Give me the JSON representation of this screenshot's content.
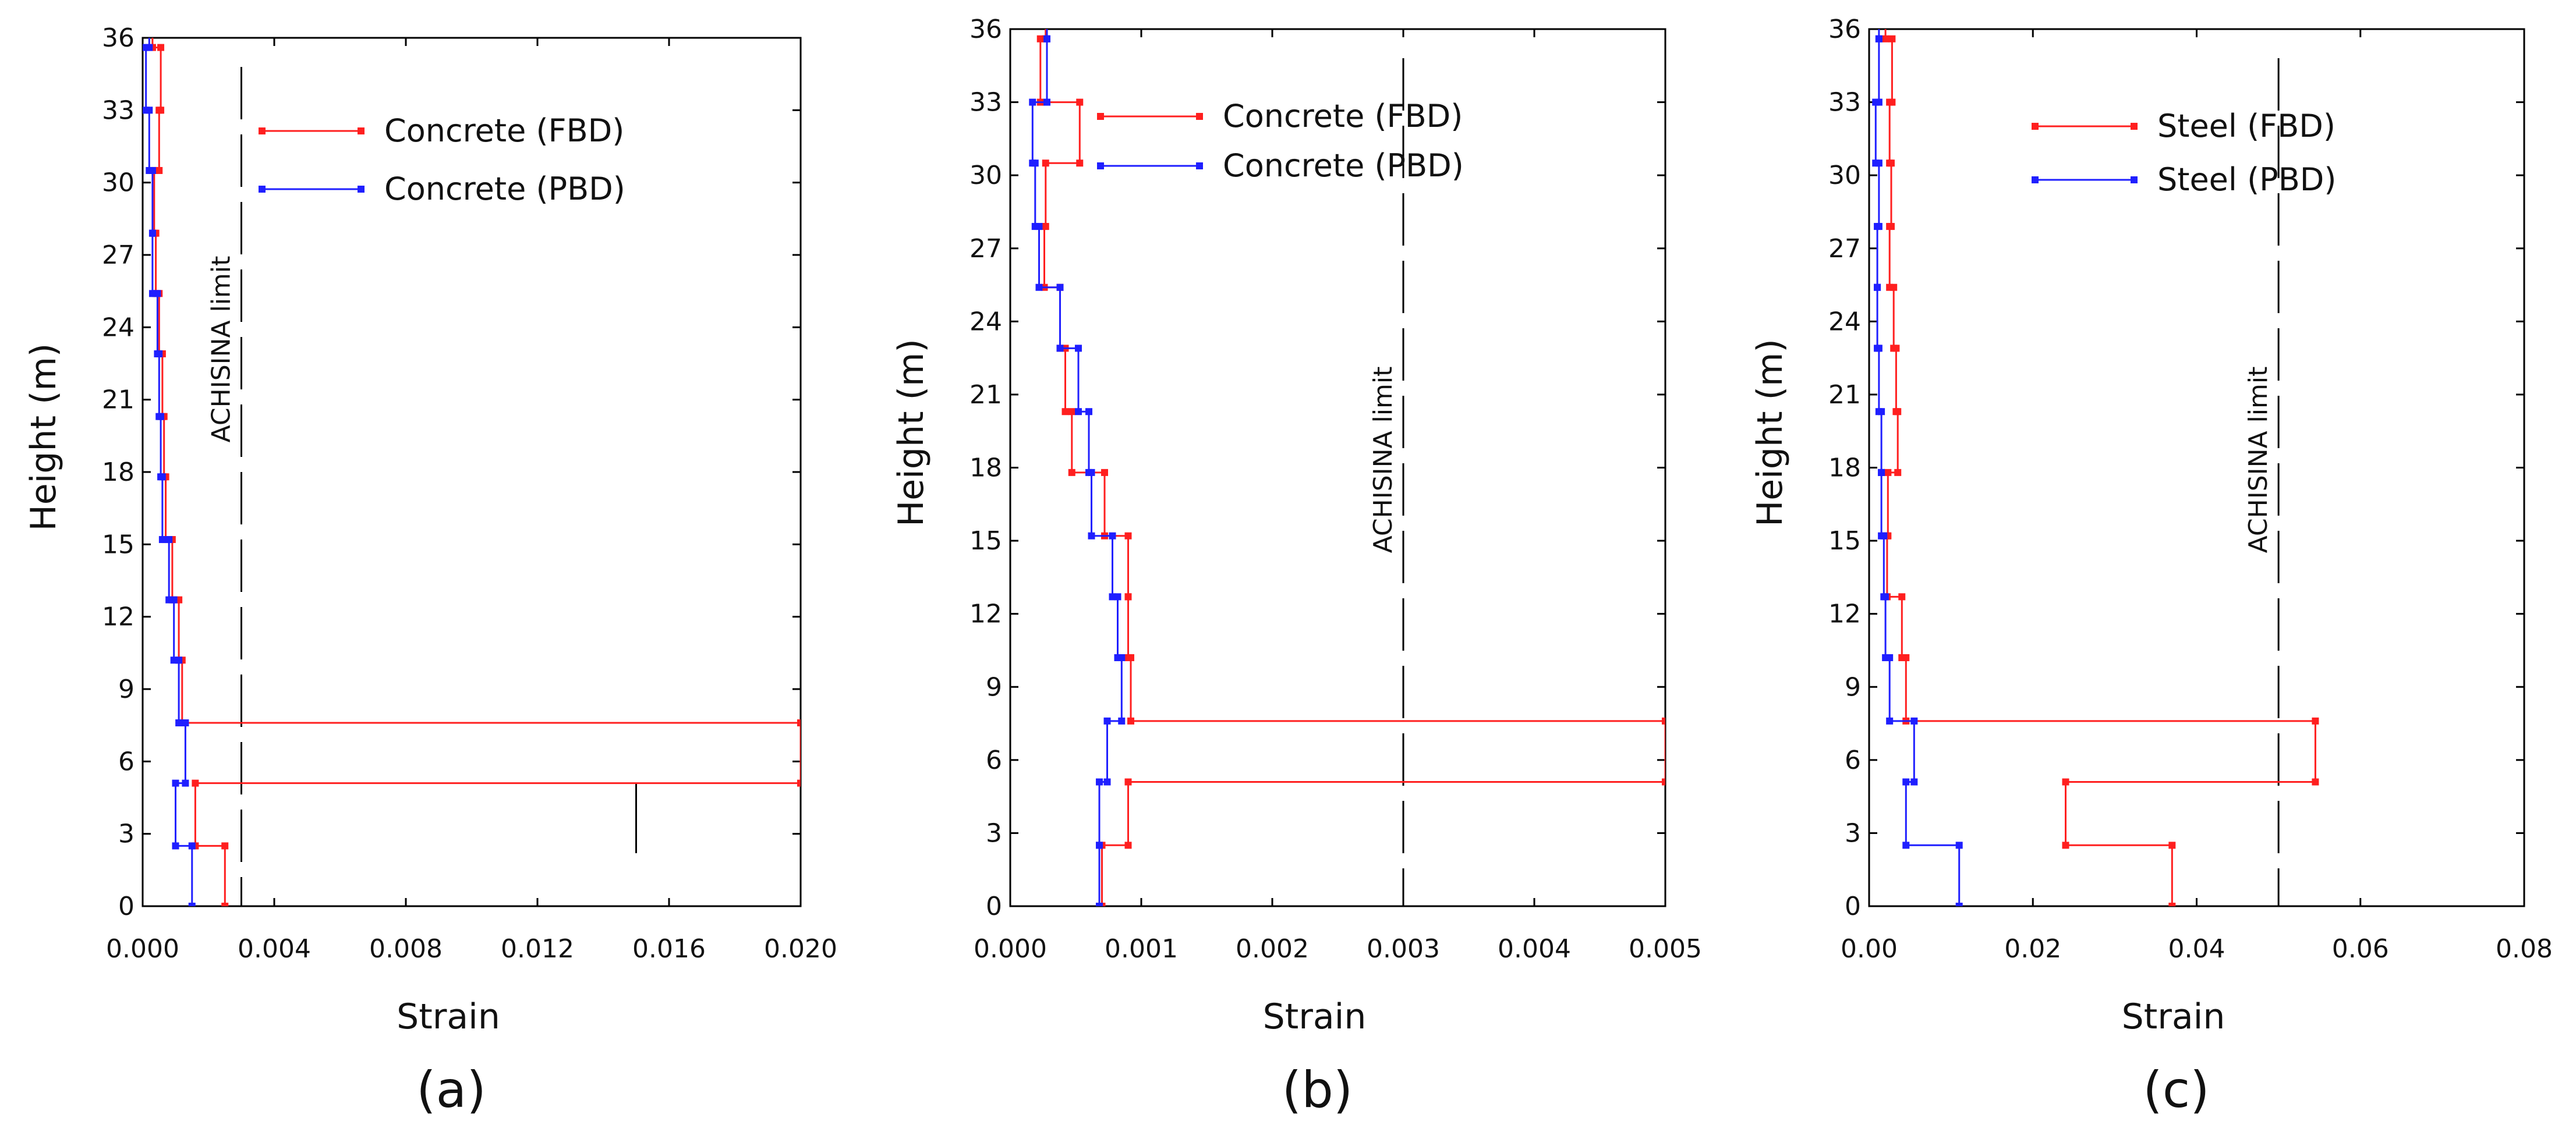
{
  "colors": {
    "fbd": "#ff1f1f",
    "pbd": "#1f1fff",
    "axis": "#000000",
    "limit": "#000000"
  },
  "chart_data": [
    {
      "type": "line",
      "panel_label": "(a)",
      "xlabel": "Strain",
      "ylabel": "Height  (m)",
      "xlim": [
        0,
        0.02
      ],
      "ylim": [
        0,
        36
      ],
      "xticks": [
        0,
        0.004,
        0.008,
        0.012,
        0.016,
        0.02
      ],
      "xtick_labels": [
        "0.000",
        "0.004",
        "0.008",
        "0.012",
        "0.016",
        "0.020"
      ],
      "yticks": [
        0,
        3,
        6,
        9,
        12,
        15,
        18,
        21,
        24,
        27,
        30,
        33,
        36
      ],
      "ytick_labels": [
        "0",
        "3",
        "6",
        "9",
        "12",
        "15",
        "18",
        "21",
        "24",
        "27",
        "30",
        "33",
        "36"
      ],
      "limit": {
        "value": 0.003,
        "label": "ACHISINA limit"
      },
      "extra_lines": [
        {
          "x": 0.015,
          "y0": 2.2,
          "y1": 5.1
        }
      ],
      "legend_position": "top-right",
      "series": [
        {
          "name": "Concrete (FBD)",
          "color_key": "fbd",
          "levels": [
            0,
            2.5,
            5.1,
            7.6,
            10.2,
            12.7,
            15.2,
            17.8,
            20.3,
            22.9,
            25.4,
            27.9,
            30.5,
            33.0,
            35.6
          ],
          "values": [
            0.0025,
            0.0016,
            0.02,
            0.0012,
            0.0011,
            0.0009,
            0.0007,
            0.00065,
            0.0006,
            0.0005,
            0.0004,
            0.00035,
            0.0005,
            0.00055,
            0.0003
          ]
        },
        {
          "name": "Concrete (PBD)",
          "color_key": "pbd",
          "levels": [
            0,
            2.5,
            5.1,
            7.6,
            10.2,
            12.7,
            15.2,
            17.8,
            20.3,
            22.9,
            25.4,
            27.9,
            30.5,
            33.0,
            35.6
          ],
          "values": [
            0.0015,
            0.001,
            0.0013,
            0.0011,
            0.00095,
            0.0008,
            0.0006,
            0.00055,
            0.0005,
            0.00045,
            0.0003,
            0.0003,
            0.0002,
            0.0001,
            0.0002
          ]
        }
      ]
    },
    {
      "type": "line",
      "panel_label": "(b)",
      "xlabel": "Strain",
      "ylabel": "Height  (m)",
      "xlim": [
        0,
        0.005
      ],
      "ylim": [
        0,
        36
      ],
      "xticks": [
        0,
        0.001,
        0.002,
        0.003,
        0.004,
        0.005
      ],
      "xtick_labels": [
        "0.000",
        "0.001",
        "0.002",
        "0.003",
        "0.004",
        "0.005"
      ],
      "yticks": [
        0,
        3,
        6,
        9,
        12,
        15,
        18,
        21,
        24,
        27,
        30,
        33,
        36
      ],
      "ytick_labels": [
        "0",
        "3",
        "6",
        "9",
        "12",
        "15",
        "18",
        "21",
        "24",
        "27",
        "30",
        "33",
        "36"
      ],
      "limit": {
        "value": 0.003,
        "label": "ACHISINA limit"
      },
      "extra_lines": [],
      "legend_position": "top-right",
      "series": [
        {
          "name": "Concrete (FBD)",
          "color_key": "fbd",
          "levels": [
            0,
            2.5,
            5.1,
            7.6,
            10.2,
            12.7,
            15.2,
            17.8,
            20.3,
            22.9,
            25.4,
            27.9,
            30.5,
            33.0,
            35.6
          ],
          "values": [
            0.0007,
            0.0009,
            0.005,
            0.00092,
            0.0009,
            0.0009,
            0.00072,
            0.00047,
            0.00042,
            0.00038,
            0.00026,
            0.00027,
            0.00053,
            0.00023,
            0.00027
          ]
        },
        {
          "name": "Concrete (PBD)",
          "color_key": "pbd",
          "levels": [
            0,
            2.5,
            5.1,
            7.6,
            10.2,
            12.7,
            15.2,
            17.8,
            20.3,
            22.9,
            25.4,
            27.9,
            30.5,
            33.0,
            35.6
          ],
          "values": [
            0.00068,
            0.00068,
            0.00074,
            0.00085,
            0.00082,
            0.00078,
            0.00062,
            0.0006,
            0.00052,
            0.00038,
            0.00022,
            0.00019,
            0.00017,
            0.00028,
            0.00028
          ]
        }
      ]
    },
    {
      "type": "line",
      "panel_label": "(c)",
      "xlabel": "Strain",
      "ylabel": "Height  (m)",
      "xlim": [
        0,
        0.08
      ],
      "ylim": [
        0,
        36
      ],
      "xticks": [
        0,
        0.02,
        0.04,
        0.06,
        0.08
      ],
      "xtick_labels": [
        "0.00",
        "0.02",
        "0.04",
        "0.06",
        "0.08"
      ],
      "yticks": [
        0,
        3,
        6,
        9,
        12,
        15,
        18,
        21,
        24,
        27,
        30,
        33,
        36
      ],
      "ytick_labels": [
        "0",
        "3",
        "6",
        "9",
        "12",
        "15",
        "18",
        "21",
        "24",
        "27",
        "30",
        "33",
        "36"
      ],
      "limit": {
        "value": 0.05,
        "label": "ACHISINA limit"
      },
      "extra_lines": [],
      "legend_position": "top-right",
      "series": [
        {
          "name": "Steel (FBD)",
          "color_key": "fbd",
          "levels": [
            0,
            2.5,
            5.1,
            7.6,
            10.2,
            12.7,
            15.2,
            17.8,
            20.3,
            22.9,
            25.4,
            27.9,
            30.5,
            33.0,
            35.6
          ],
          "values": [
            0.037,
            0.024,
            0.0545,
            0.0045,
            0.004,
            0.0022,
            0.0023,
            0.0035,
            0.0033,
            0.003,
            0.0025,
            0.0027,
            0.0025,
            0.0028,
            0.002
          ]
        },
        {
          "name": "Steel (PBD)",
          "color_key": "pbd",
          "levels": [
            0,
            2.5,
            5.1,
            7.6,
            10.2,
            12.7,
            15.2,
            17.8,
            20.3,
            22.9,
            25.4,
            27.9,
            30.5,
            33.0,
            35.6
          ],
          "values": [
            0.011,
            0.0045,
            0.0055,
            0.0025,
            0.002,
            0.0018,
            0.0015,
            0.0015,
            0.0012,
            0.001,
            0.001,
            0.0012,
            0.0008,
            0.0012,
            0.0012
          ]
        }
      ]
    }
  ]
}
